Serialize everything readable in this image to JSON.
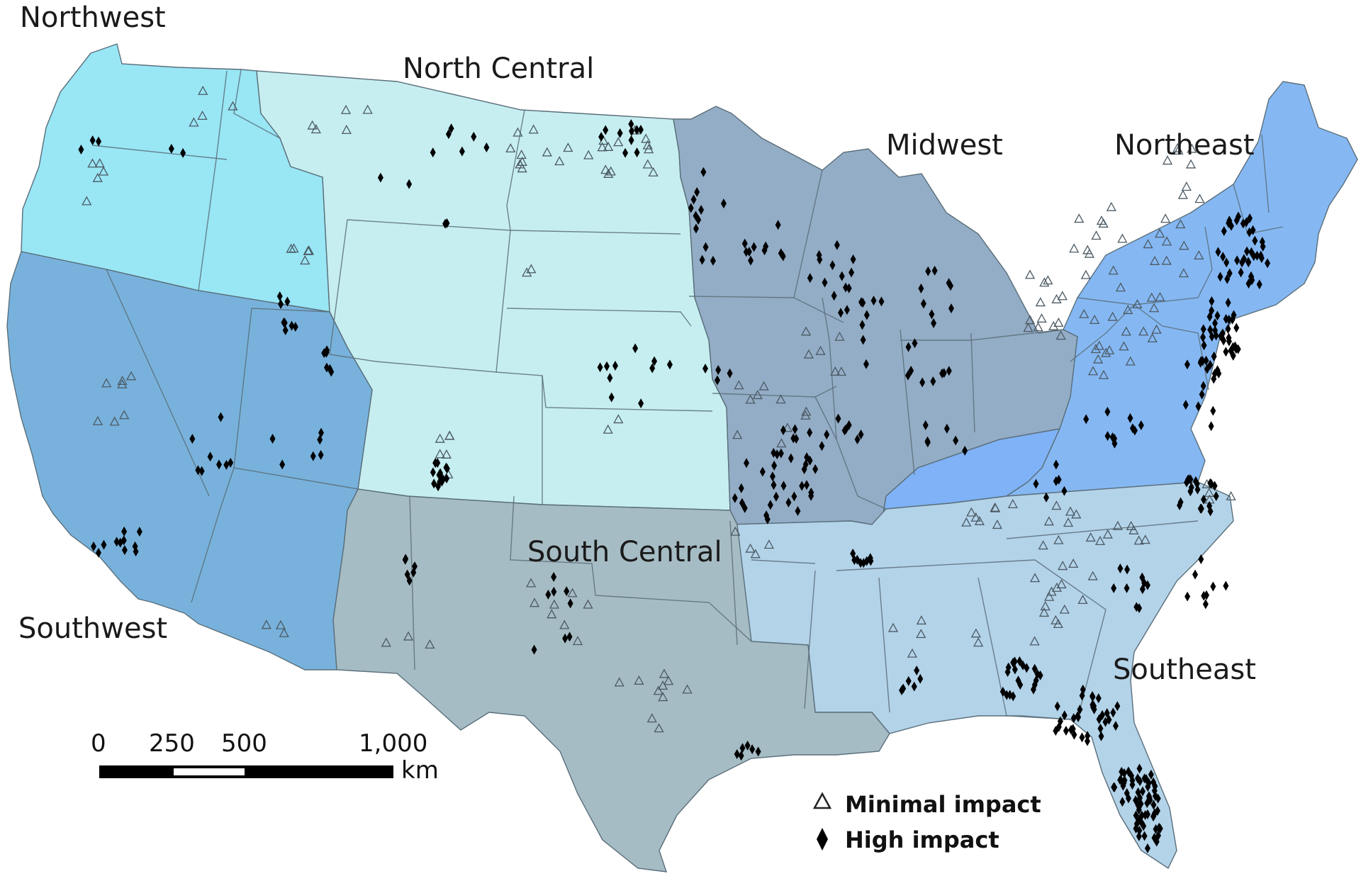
{
  "colors": {
    "background": "#ffffff",
    "northwest": "#99e6f5",
    "north_central": "#c6eef0",
    "midwest": "#94adc6",
    "northeast": "#85b8f3",
    "kentucky": "#7fb2f6",
    "southeast": "#b3d3e9",
    "south_central": "#a6bcc4",
    "southwest": "#78b2dc",
    "marker_high": "#000000",
    "marker_minimal_stroke": "#4c5a64"
  },
  "regions": {
    "northwest": "Northwest",
    "north_central": "North Central",
    "midwest": "Midwest",
    "northeast": "Northeast",
    "south_central": "South Central",
    "southwest": "Southwest",
    "southeast": "Southeast"
  },
  "scale_bar": {
    "ticks": [
      "0",
      "250",
      "500",
      "1,000"
    ],
    "unit": "km"
  },
  "legend": {
    "minimal": {
      "label": "Minimal impact",
      "icon": "triangle-outline-icon"
    },
    "high": {
      "label": "High impact",
      "icon": "diamond-filled-icon"
    }
  }
}
